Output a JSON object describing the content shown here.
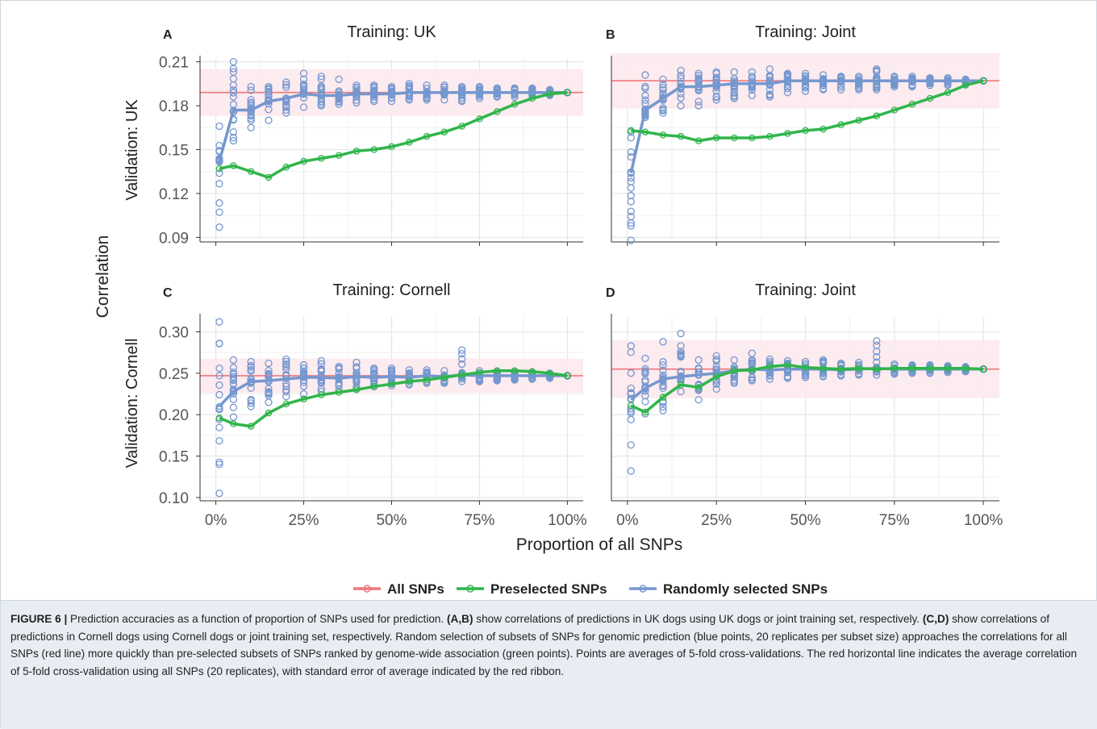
{
  "figure": {
    "y_axis_title": "Correlation",
    "x_axis_title": "Proportion of all SNPs",
    "legend": [
      {
        "label": "All SNPs",
        "color": "#f0777a"
      },
      {
        "label": "Preselected SNPs",
        "color": "#2fb54a"
      },
      {
        "label": "Randomly selected SNPs",
        "color": "#7597cf"
      }
    ],
    "colors": {
      "all": "#f0777a",
      "preselected": "#2fb54a",
      "random": "#7597cf",
      "ribbon": "#fbe7ec",
      "grid": "#e6e6e6"
    },
    "row_labels": [
      "Validation: UK",
      "Validation: Cornell"
    ]
  },
  "caption": {
    "figure_label": "FIGURE 6 |",
    "text_1": " Prediction accuracies as a function of proportion of SNPs used for prediction. ",
    "bold_1": "(A,B)",
    "text_2": " show correlations of predictions in UK dogs using UK dogs or joint training set, respectively. ",
    "bold_2": "(C,D)",
    "text_3": " show correlations of predictions in Cornell dogs using Cornell dogs or joint training set, respectively. Random selection of subsets of SNPs for genomic prediction (blue points, 20 replicates per subset size) approaches the correlations for all SNPs (red line) more quickly than pre-selected subsets of SNPs ranked by genome-wide association (green points). Points are averages of 5-fold cross-validations. The red horizontal line indicates the average correlation of 5-fold cross-validation using all SNPs (20 replicates), with standard error of average indicated by the red ribbon."
  },
  "chart_data": [
    {
      "type": "line",
      "panel": "A",
      "title": "Training: UK",
      "ylabel": "Validation: UK",
      "xlabel": "",
      "x_ticks": [
        "0%",
        "25%",
        "50%",
        "75%",
        "100%"
      ],
      "y_ticks": [
        "0.09",
        "0.12",
        "0.15",
        "0.18",
        "0.21"
      ],
      "xlim": [
        0,
        100
      ],
      "ylim": [
        0.088,
        0.212
      ],
      "all_snps": {
        "value": 0.189,
        "ribbon": [
          0.173,
          0.205
        ]
      },
      "series": [
        {
          "name": "Preselected SNPs",
          "x": [
            1,
            5,
            10,
            15,
            20,
            25,
            30,
            35,
            40,
            45,
            50,
            55,
            60,
            65,
            70,
            75,
            80,
            85,
            90,
            95,
            100
          ],
          "values": [
            0.137,
            0.139,
            0.135,
            0.131,
            0.138,
            0.142,
            0.144,
            0.146,
            0.149,
            0.15,
            0.152,
            0.155,
            0.159,
            0.162,
            0.166,
            0.171,
            0.176,
            0.181,
            0.185,
            0.188,
            0.189
          ]
        },
        {
          "name": "Randomly selected SNPs",
          "x": [
            1,
            5,
            10,
            15,
            20,
            25,
            30,
            35,
            40,
            45,
            50,
            55,
            60,
            65,
            70,
            75,
            80,
            85,
            90,
            95,
            100
          ],
          "values": [
            0.142,
            0.177,
            0.177,
            0.183,
            0.185,
            0.188,
            0.187,
            0.187,
            0.188,
            0.188,
            0.188,
            0.189,
            0.189,
            0.189,
            0.189,
            0.189,
            0.189,
            0.189,
            0.189,
            0.189,
            0.189
          ]
        }
      ],
      "replicates": {
        "x": [
          1,
          5,
          10,
          15,
          20,
          25,
          30,
          35,
          40,
          45,
          50,
          55,
          60,
          65,
          70,
          75,
          80,
          85,
          90,
          95,
          100
        ],
        "low": [
          0.097,
          0.156,
          0.165,
          0.17,
          0.175,
          0.179,
          0.18,
          0.181,
          0.182,
          0.183,
          0.183,
          0.184,
          0.184,
          0.184,
          0.183,
          0.185,
          0.186,
          0.186,
          0.187,
          0.187,
          0.189
        ],
        "high": [
          0.166,
          0.21,
          0.193,
          0.193,
          0.196,
          0.202,
          0.2,
          0.198,
          0.194,
          0.194,
          0.193,
          0.195,
          0.194,
          0.194,
          0.193,
          0.193,
          0.192,
          0.192,
          0.192,
          0.191,
          0.189
        ]
      }
    },
    {
      "type": "line",
      "panel": "B",
      "title": "Training: Joint",
      "ylabel": "",
      "xlabel": "",
      "x_ticks": [
        "0%",
        "25%",
        "50%",
        "75%",
        "100%"
      ],
      "y_ticks": [
        "0.09",
        "0.12",
        "0.15",
        "0.18",
        "0.21"
      ],
      "xlim": [
        0,
        100
      ],
      "ylim": [
        0.088,
        0.212
      ],
      "all_snps": {
        "value": 0.197,
        "ribbon": [
          0.178,
          0.216
        ]
      },
      "series": [
        {
          "name": "Preselected SNPs",
          "x": [
            1,
            5,
            10,
            15,
            20,
            25,
            30,
            35,
            40,
            45,
            50,
            55,
            60,
            65,
            70,
            75,
            80,
            85,
            90,
            95,
            100
          ],
          "values": [
            0.163,
            0.162,
            0.16,
            0.159,
            0.156,
            0.158,
            0.158,
            0.158,
            0.159,
            0.161,
            0.163,
            0.164,
            0.167,
            0.17,
            0.173,
            0.177,
            0.181,
            0.185,
            0.189,
            0.194,
            0.197
          ]
        },
        {
          "name": "Randomly selected SNPs",
          "x": [
            1,
            5,
            10,
            15,
            20,
            25,
            30,
            35,
            40,
            45,
            50,
            55,
            60,
            65,
            70,
            75,
            80,
            85,
            90,
            95,
            100
          ],
          "values": [
            0.134,
            0.177,
            0.185,
            0.193,
            0.193,
            0.194,
            0.195,
            0.195,
            0.195,
            0.197,
            0.197,
            0.197,
            0.197,
            0.197,
            0.197,
            0.197,
            0.197,
            0.197,
            0.197,
            0.197,
            0.197
          ]
        }
      ],
      "replicates": {
        "x": [
          1,
          5,
          10,
          15,
          20,
          25,
          30,
          35,
          40,
          45,
          50,
          55,
          60,
          65,
          70,
          75,
          80,
          85,
          90,
          95,
          100
        ],
        "low": [
          0.088,
          0.172,
          0.175,
          0.18,
          0.18,
          0.184,
          0.185,
          0.187,
          0.186,
          0.189,
          0.19,
          0.191,
          0.191,
          0.191,
          0.191,
          0.193,
          0.193,
          0.194,
          0.194,
          0.195,
          0.197
        ],
        "high": [
          0.162,
          0.201,
          0.198,
          0.204,
          0.202,
          0.203,
          0.203,
          0.203,
          0.205,
          0.202,
          0.202,
          0.201,
          0.2,
          0.2,
          0.205,
          0.2,
          0.2,
          0.199,
          0.199,
          0.198,
          0.197
        ]
      }
    },
    {
      "type": "line",
      "panel": "C",
      "title": "Training: Cornell",
      "ylabel": "Validation: Cornell",
      "xlabel": "Proportion of all SNPs",
      "x_ticks": [
        "0%",
        "25%",
        "50%",
        "75%",
        "100%"
      ],
      "y_ticks": [
        "0.10",
        "0.15",
        "0.20",
        "0.25",
        "0.30"
      ],
      "xlim": [
        0,
        100
      ],
      "ylim": [
        0.098,
        0.318
      ],
      "all_snps": {
        "value": 0.247,
        "ribbon": [
          0.226,
          0.268
        ]
      },
      "series": [
        {
          "name": "Preselected SNPs",
          "x": [
            1,
            5,
            10,
            15,
            20,
            25,
            30,
            35,
            40,
            45,
            50,
            55,
            60,
            65,
            70,
            75,
            80,
            85,
            90,
            95,
            100
          ],
          "values": [
            0.196,
            0.189,
            0.186,
            0.202,
            0.213,
            0.219,
            0.224,
            0.227,
            0.23,
            0.234,
            0.237,
            0.24,
            0.242,
            0.245,
            0.248,
            0.251,
            0.253,
            0.253,
            0.252,
            0.25,
            0.247
          ]
        },
        {
          "name": "Randomly selected SNPs",
          "x": [
            1,
            5,
            10,
            15,
            20,
            25,
            30,
            35,
            40,
            45,
            50,
            55,
            60,
            65,
            70,
            75,
            80,
            85,
            90,
            95,
            100
          ],
          "values": [
            0.21,
            0.228,
            0.24,
            0.241,
            0.243,
            0.245,
            0.245,
            0.244,
            0.246,
            0.245,
            0.246,
            0.245,
            0.247,
            0.246,
            0.248,
            0.247,
            0.247,
            0.247,
            0.247,
            0.247,
            0.247
          ]
        }
      ],
      "replicates": {
        "x": [
          1,
          5,
          10,
          15,
          20,
          25,
          30,
          35,
          40,
          45,
          50,
          55,
          60,
          65,
          70,
          75,
          80,
          85,
          90,
          95,
          100
        ],
        "low": [
          0.105,
          0.197,
          0.21,
          0.215,
          0.222,
          0.225,
          0.228,
          0.23,
          0.232,
          0.234,
          0.235,
          0.236,
          0.238,
          0.238,
          0.24,
          0.24,
          0.241,
          0.242,
          0.243,
          0.244,
          0.247
        ],
        "high": [
          0.312,
          0.266,
          0.264,
          0.262,
          0.267,
          0.26,
          0.265,
          0.258,
          0.263,
          0.256,
          0.256,
          0.254,
          0.254,
          0.253,
          0.278,
          0.253,
          0.252,
          0.252,
          0.251,
          0.25,
          0.247
        ]
      }
    },
    {
      "type": "line",
      "panel": "D",
      "title": "Training: Joint",
      "ylabel": "",
      "xlabel": "Proportion of all SNPs",
      "x_ticks": [
        "0%",
        "25%",
        "50%",
        "75%",
        "100%"
      ],
      "y_ticks": [
        "0.10",
        "0.15",
        "0.20",
        "0.25",
        "0.30"
      ],
      "xlim": [
        0,
        100
      ],
      "ylim": [
        0.098,
        0.318
      ],
      "all_snps": {
        "value": 0.255,
        "ribbon": [
          0.22,
          0.29
        ]
      },
      "series": [
        {
          "name": "Preselected SNPs",
          "x": [
            1,
            5,
            10,
            15,
            20,
            25,
            30,
            35,
            40,
            45,
            50,
            55,
            60,
            65,
            70,
            75,
            80,
            85,
            90,
            95,
            100
          ],
          "values": [
            0.211,
            0.203,
            0.221,
            0.236,
            0.233,
            0.246,
            0.253,
            0.254,
            0.258,
            0.26,
            0.257,
            0.256,
            0.255,
            0.256,
            0.255,
            0.256,
            0.256,
            0.256,
            0.256,
            0.256,
            0.255
          ]
        },
        {
          "name": "Randomly selected SNPs",
          "x": [
            1,
            5,
            10,
            15,
            20,
            25,
            30,
            35,
            40,
            45,
            50,
            55,
            60,
            65,
            70,
            75,
            80,
            85,
            90,
            95,
            100
          ],
          "values": [
            0.218,
            0.232,
            0.243,
            0.246,
            0.248,
            0.25,
            0.253,
            0.255,
            0.254,
            0.255,
            0.255,
            0.255,
            0.254,
            0.255,
            0.256,
            0.255,
            0.255,
            0.255,
            0.255,
            0.255,
            0.255
          ]
        }
      ],
      "replicates": {
        "x": [
          1,
          5,
          10,
          15,
          20,
          25,
          30,
          35,
          40,
          45,
          50,
          55,
          60,
          65,
          70,
          75,
          80,
          85,
          90,
          95,
          100
        ],
        "low": [
          0.132,
          0.201,
          0.205,
          0.228,
          0.218,
          0.231,
          0.238,
          0.241,
          0.243,
          0.244,
          0.245,
          0.246,
          0.247,
          0.248,
          0.248,
          0.249,
          0.25,
          0.25,
          0.251,
          0.252,
          0.255
        ],
        "high": [
          0.283,
          0.268,
          0.288,
          0.298,
          0.266,
          0.271,
          0.266,
          0.274,
          0.267,
          0.265,
          0.264,
          0.266,
          0.262,
          0.263,
          0.289,
          0.261,
          0.26,
          0.26,
          0.259,
          0.258,
          0.255
        ]
      }
    }
  ]
}
